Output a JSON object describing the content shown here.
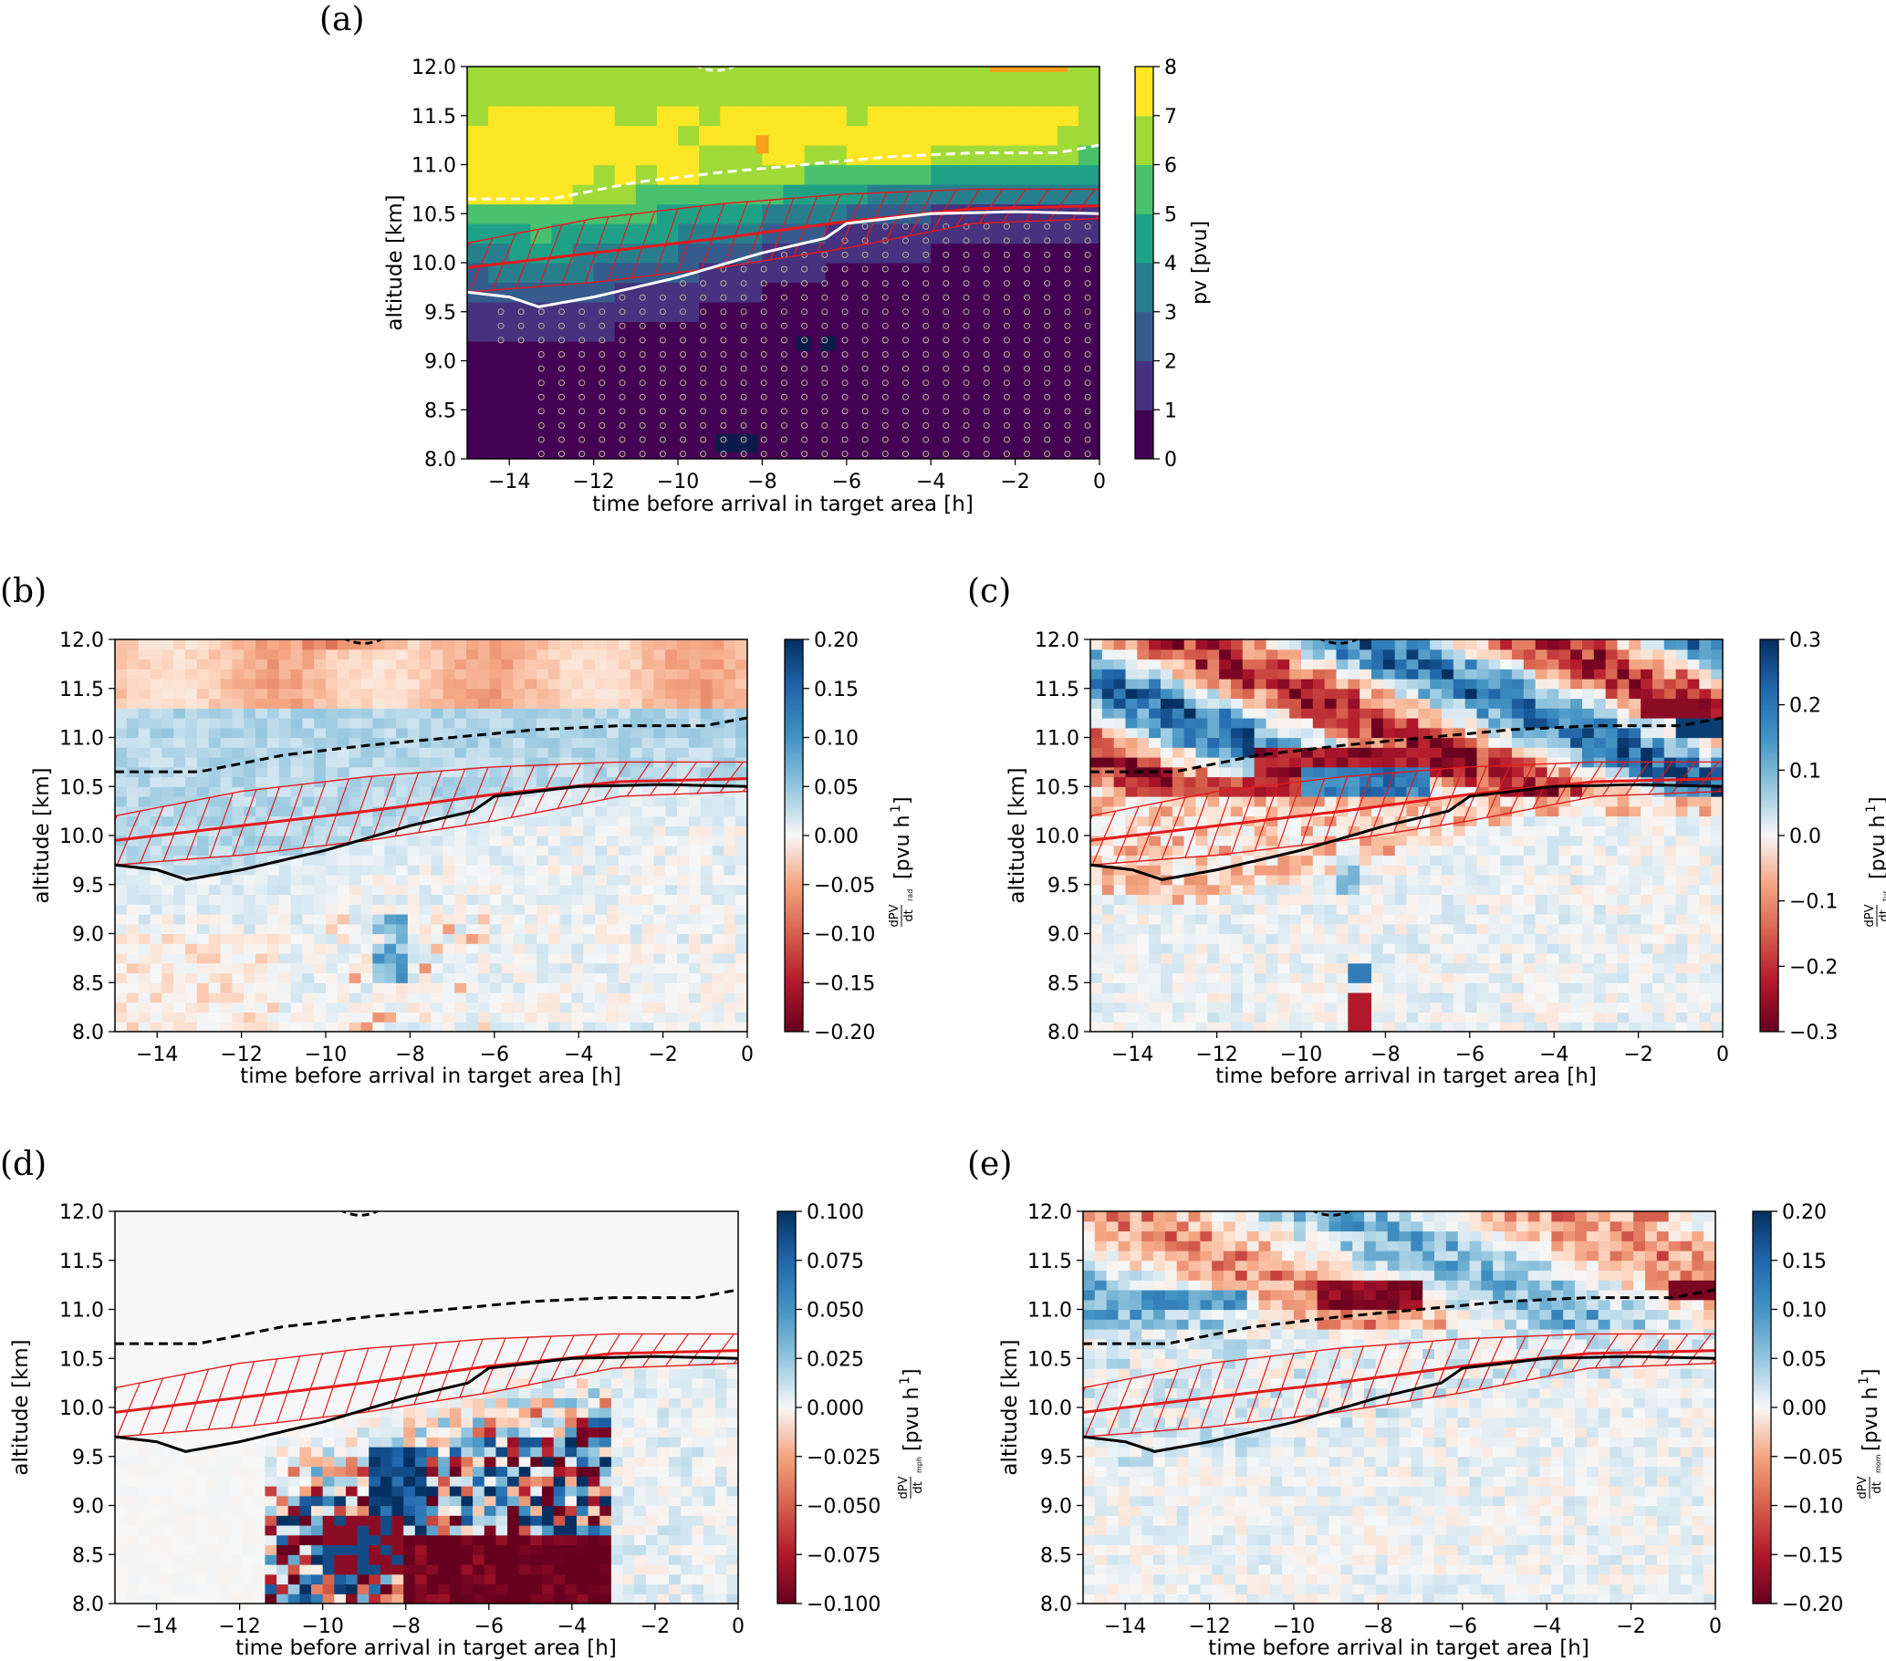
{
  "chart_data": [
    {
      "panel": "(a)",
      "type": "heatmap",
      "xlabel": "time before arrival in target area [h]",
      "ylabel": "altitude [km]",
      "xlim": [
        -15,
        0
      ],
      "ylim": [
        8.0,
        12.0
      ],
      "xticks": [
        "−14",
        "−12",
        "−10",
        "−8",
        "−6",
        "−4",
        "−2",
        "0"
      ],
      "yticks": [
        "8.0",
        "8.5",
        "9.0",
        "9.5",
        "10.0",
        "10.5",
        "11.0",
        "11.5",
        "12.0"
      ],
      "colorbar": {
        "label": "pv [pvu]",
        "ticks": [
          "0",
          "1",
          "2",
          "3",
          "4",
          "5",
          "6",
          "7",
          "8"
        ],
        "range": [
          0,
          8
        ],
        "levels": 8,
        "colormap": "viridis"
      },
      "line_color": "#ffffff",
      "dashed_line": {
        "x": [
          -15,
          -13,
          -11,
          -9,
          -7,
          -5,
          -3,
          -1,
          0
        ],
        "y": [
          10.65,
          10.65,
          10.82,
          10.92,
          11.0,
          11.08,
          11.12,
          11.12,
          11.2
        ]
      },
      "solid_line": {
        "x": [
          -15,
          -14,
          -13.3,
          -12,
          -10,
          -8,
          -6.5,
          -6,
          -4,
          -2,
          0
        ],
        "y": [
          9.7,
          9.65,
          9.55,
          9.65,
          9.85,
          10.1,
          10.25,
          10.4,
          10.5,
          10.52,
          10.5
        ]
      },
      "hatch_band": {
        "x": [
          -15,
          -12,
          -9,
          -6,
          -3,
          0
        ],
        "center": [
          9.95,
          10.1,
          10.25,
          10.42,
          10.55,
          10.58
        ],
        "upper": [
          10.2,
          10.45,
          10.6,
          10.7,
          10.75,
          10.75
        ],
        "lower": [
          9.7,
          9.8,
          9.95,
          10.15,
          10.4,
          10.45
        ]
      },
      "stipple_region": "low PV below the solid line"
    },
    {
      "panel": "(b)",
      "type": "heatmap",
      "xlabel": "time before arrival in target area [h]",
      "ylabel": "altitude [km]",
      "xlim": [
        -15,
        0
      ],
      "ylim": [
        8.0,
        12.0
      ],
      "xticks": [
        "−14",
        "−12",
        "−10",
        "−8",
        "−6",
        "−4",
        "−2",
        "0"
      ],
      "yticks": [
        "8.0",
        "8.5",
        "9.0",
        "9.5",
        "10.0",
        "10.5",
        "11.0",
        "11.5",
        "12.0"
      ],
      "colorbar": {
        "label_main": "[pvu h",
        "label_sup": "1",
        "label_frac_num": "dPV",
        "label_frac_den": "dt",
        "label_sub": "rad",
        "ticks": [
          "0.20",
          "0.15",
          "0.10",
          "0.05",
          "0.00",
          "−0.05",
          "−0.10",
          "−0.15",
          "−0.20"
        ],
        "range": [
          -0.2,
          0.2
        ],
        "colormap": "RdBu"
      },
      "pattern": "radiative",
      "line_color": "#000000"
    },
    {
      "panel": "(c)",
      "type": "heatmap",
      "xlabel": "time before arrival in target area [h]",
      "ylabel": "altitude [km]",
      "xlim": [
        -15,
        0
      ],
      "ylim": [
        8.0,
        12.0
      ],
      "xticks": [
        "−14",
        "−12",
        "−10",
        "−8",
        "−6",
        "−4",
        "−2",
        "0"
      ],
      "yticks": [
        "8.0",
        "8.5",
        "9.0",
        "9.5",
        "10.0",
        "10.5",
        "11.0",
        "11.5",
        "12.0"
      ],
      "colorbar": {
        "label_main": "[pvu h",
        "label_sup": "1",
        "label_frac_num": "dPV",
        "label_frac_den": "dt",
        "label_sub": "tur",
        "ticks": [
          "0.3",
          "0.2",
          "0.1",
          "0.0",
          "−0.1",
          "−0.2",
          "−0.3"
        ],
        "range": [
          -0.3,
          0.3
        ],
        "colormap": "RdBu"
      },
      "pattern": "turbulent",
      "line_color": "#000000"
    },
    {
      "panel": "(d)",
      "type": "heatmap",
      "xlabel": "time before arrival in target area [h]",
      "ylabel": "altitude [km]",
      "xlim": [
        -15,
        0
      ],
      "ylim": [
        8.0,
        12.0
      ],
      "xticks": [
        "−14",
        "−12",
        "−10",
        "−8",
        "−6",
        "−4",
        "−2",
        "0"
      ],
      "yticks": [
        "8.0",
        "8.5",
        "9.0",
        "9.5",
        "10.0",
        "10.5",
        "11.0",
        "11.5",
        "12.0"
      ],
      "colorbar": {
        "label_main": "[pvu h",
        "label_sup": "1",
        "label_frac_num": "dPV",
        "label_frac_den": "dt",
        "label_sub": "mph",
        "ticks": [
          "0.100",
          "0.075",
          "0.050",
          "0.025",
          "0.000",
          "−0.025",
          "−0.050",
          "−0.075",
          "−0.100"
        ],
        "range": [
          -0.1,
          0.1
        ],
        "colormap": "RdBu"
      },
      "pattern": "microphysics",
      "line_color": "#000000"
    },
    {
      "panel": "(e)",
      "type": "heatmap",
      "xlabel": "time before arrival in target area [h]",
      "ylabel": "altitude [km]",
      "xlim": [
        -15,
        0
      ],
      "ylim": [
        8.0,
        12.0
      ],
      "xticks": [
        "−14",
        "−12",
        "−10",
        "−8",
        "−6",
        "−4",
        "−2",
        "0"
      ],
      "yticks": [
        "8.0",
        "8.5",
        "9.0",
        "9.5",
        "10.0",
        "10.5",
        "11.0",
        "11.5",
        "12.0"
      ],
      "colorbar": {
        "label_main": "[pvu h",
        "label_sup": "1",
        "label_frac_num": "dPV",
        "label_frac_den": "dt",
        "label_sub": "mom",
        "ticks": [
          "0.20",
          "0.15",
          "0.10",
          "0.05",
          "0.00",
          "−0.05",
          "−0.10",
          "−0.15",
          "−0.20"
        ],
        "range": [
          -0.2,
          0.2
        ],
        "colormap": "RdBu"
      },
      "pattern": "momentum",
      "line_color": "#000000"
    }
  ],
  "colors": {
    "hatch": "#e41a1c",
    "band_center": "#e41a1c"
  }
}
